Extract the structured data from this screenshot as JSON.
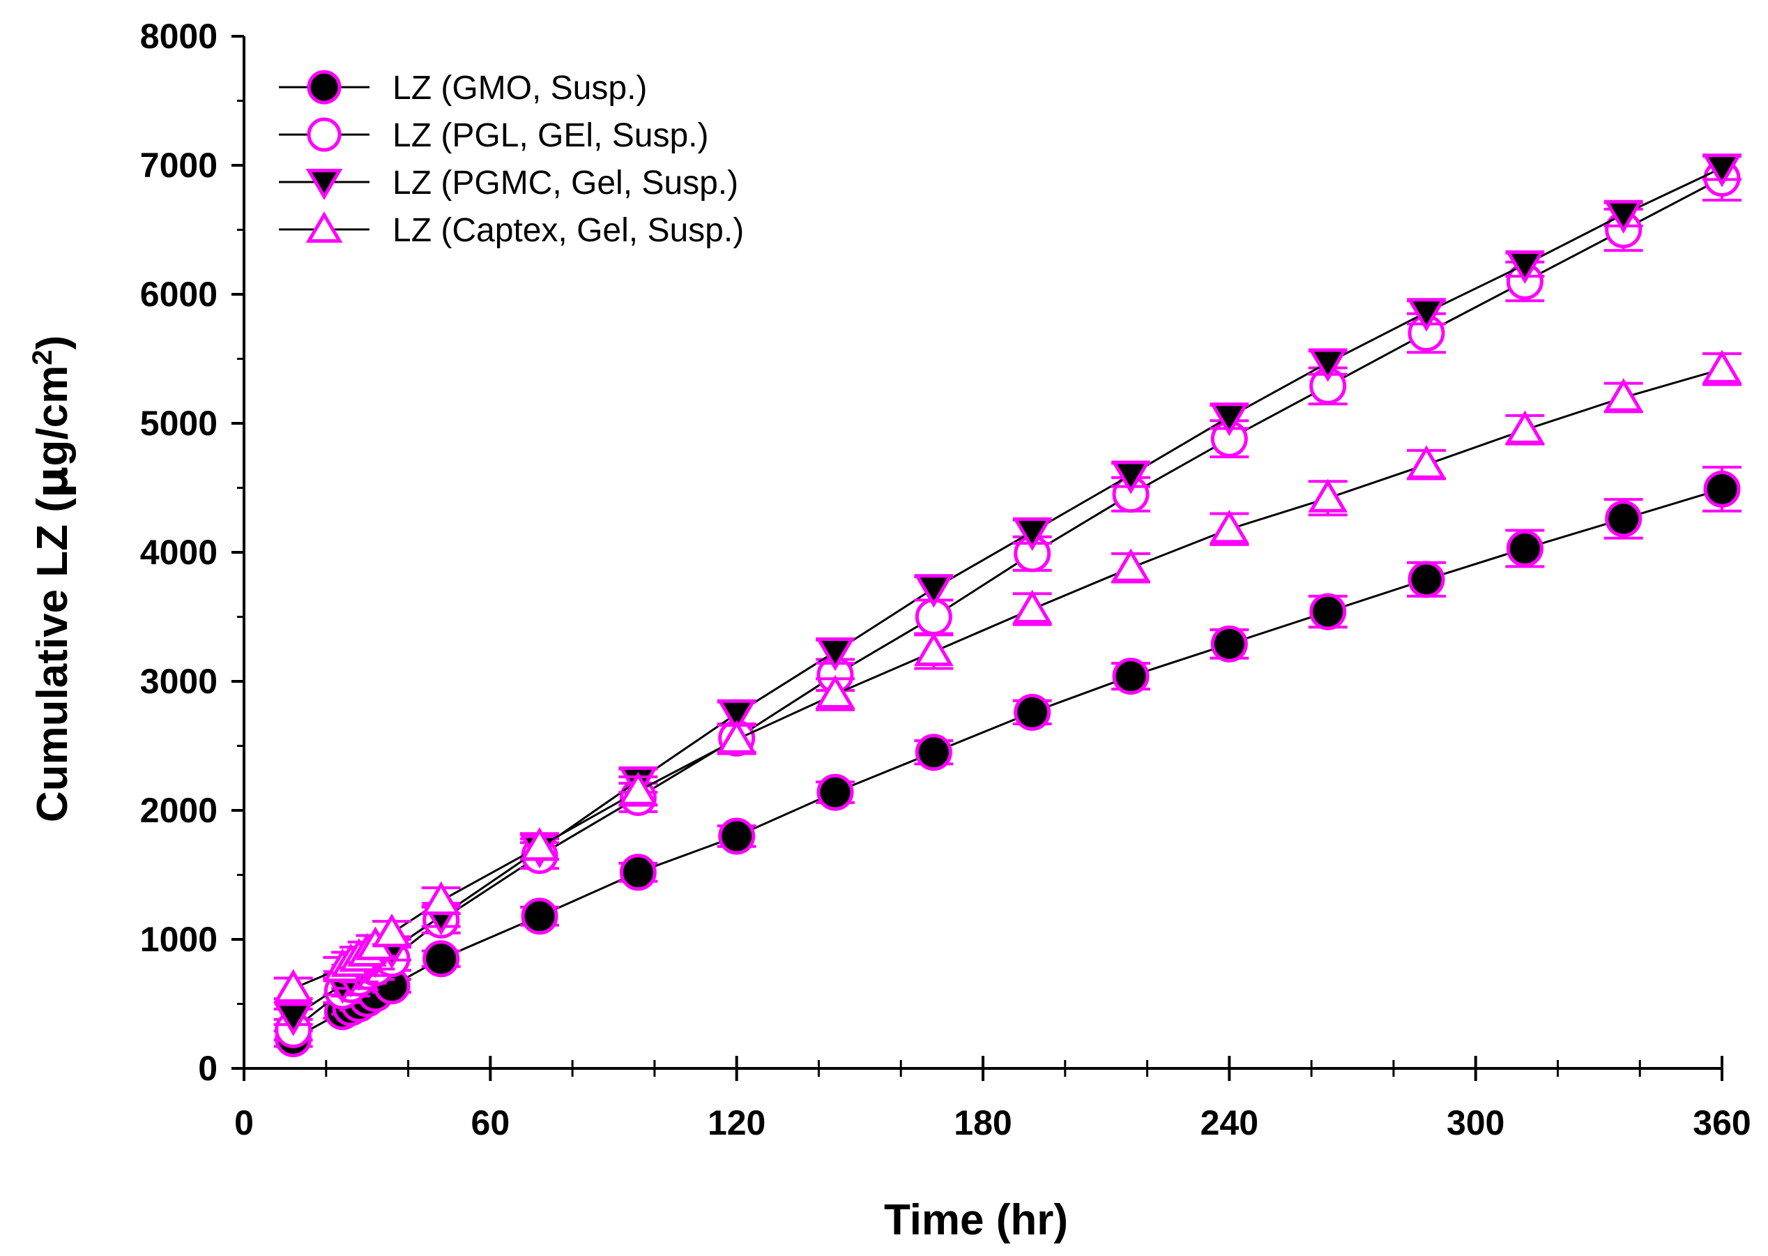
{
  "chart_data": {
    "type": "line",
    "title": "",
    "xlabel": "Time (hr)",
    "ylabel_main": "Cumulative LZ (",
    "ylabel_mu": "μ",
    "ylabel_unit": "g/cm",
    "ylabel_sup": "2",
    "ylabel_close": ")",
    "xlim": [
      0,
      360
    ],
    "ylim": [
      0,
      8000
    ],
    "xticks": [
      0,
      60,
      120,
      180,
      240,
      300,
      360
    ],
    "yticks": [
      0,
      1000,
      2000,
      3000,
      4000,
      5000,
      6000,
      7000,
      8000
    ],
    "legend_position": "top-left",
    "colors": {
      "line": "#000000",
      "marker_edge": "#ff00ff",
      "marker_filled": "#000000",
      "marker_open": "#ffffff"
    },
    "series": [
      {
        "name": "LZ (GMO, Susp.)",
        "marker": "circle-filled",
        "x": [
          12,
          24,
          26,
          28,
          30,
          32,
          36,
          48,
          72,
          96,
          120,
          144,
          168,
          192,
          216,
          240,
          264,
          288,
          312,
          336,
          360
        ],
        "y": [
          230,
          440,
          470,
          500,
          540,
          580,
          640,
          850,
          1180,
          1520,
          1800,
          2140,
          2450,
          2760,
          3040,
          3290,
          3540,
          3790,
          4030,
          4260,
          4490
        ],
        "err": [
          60,
          50,
          50,
          50,
          50,
          50,
          50,
          60,
          70,
          70,
          80,
          80,
          90,
          90,
          100,
          110,
          120,
          130,
          140,
          150,
          170
        ]
      },
      {
        "name": "LZ (PGL, GEl, Susp.)",
        "marker": "circle-open",
        "x": [
          12,
          24,
          26,
          28,
          30,
          32,
          36,
          48,
          72,
          96,
          120,
          144,
          168,
          192,
          216,
          240,
          264,
          288,
          312,
          336,
          360
        ],
        "y": [
          300,
          600,
          650,
          700,
          750,
          780,
          850,
          1150,
          1650,
          2100,
          2560,
          3050,
          3500,
          3990,
          4450,
          4880,
          5290,
          5700,
          6100,
          6500,
          6900
        ],
        "err": [
          80,
          90,
          90,
          90,
          90,
          90,
          90,
          100,
          100,
          110,
          110,
          120,
          130,
          130,
          130,
          140,
          140,
          150,
          150,
          160,
          170
        ]
      },
      {
        "name": "LZ (PGMC, Gel, Susp.)",
        "marker": "triangle-down-filled",
        "x": [
          12,
          24,
          26,
          28,
          30,
          32,
          36,
          48,
          72,
          96,
          120,
          144,
          168,
          192,
          216,
          240,
          264,
          288,
          312,
          336,
          360
        ],
        "y": [
          400,
          650,
          700,
          750,
          800,
          850,
          920,
          1180,
          1700,
          2230,
          2750,
          3230,
          3720,
          4160,
          4600,
          5050,
          5470,
          5860,
          6230,
          6620,
          6980
        ],
        "err": [
          60,
          80,
          80,
          80,
          80,
          80,
          80,
          80,
          80,
          90,
          90,
          90,
          90,
          90,
          90,
          90,
          90,
          90,
          90,
          90,
          90
        ]
      },
      {
        "name": "LZ (Captex, Gel, Susp.)",
        "marker": "triangle-up-open",
        "x": [
          12,
          24,
          26,
          28,
          30,
          32,
          36,
          48,
          72,
          96,
          120,
          144,
          168,
          192,
          216,
          240,
          264,
          288,
          312,
          336,
          360
        ],
        "y": [
          620,
          780,
          820,
          860,
          900,
          950,
          1050,
          1300,
          1720,
          2150,
          2550,
          2900,
          3230,
          3560,
          3880,
          4180,
          4420,
          4680,
          4950,
          5200,
          5420
        ],
        "err": [
          80,
          80,
          80,
          80,
          80,
          80,
          90,
          100,
          100,
          110,
          110,
          120,
          130,
          120,
          110,
          120,
          130,
          110,
          110,
          110,
          120
        ]
      }
    ]
  }
}
